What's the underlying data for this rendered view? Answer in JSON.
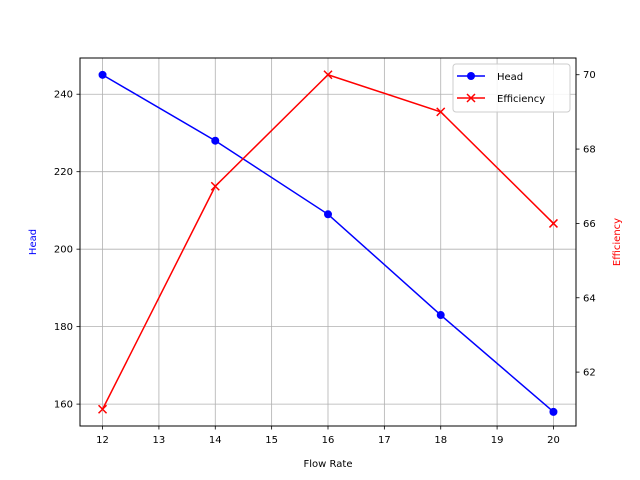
{
  "chart_data": {
    "type": "line",
    "title": "",
    "xlabel": "Flow Rate",
    "ylabel": "Head",
    "y2label": "Efficiency",
    "x": [
      12,
      14,
      16,
      18,
      20
    ],
    "xlim": [
      11.6,
      20.4
    ],
    "xticks": [
      12,
      13,
      14,
      15,
      16,
      17,
      18,
      19,
      20
    ],
    "ylim": [
      154.35,
      249.35
    ],
    "yticks": [
      160,
      180,
      200,
      220,
      240
    ],
    "y2lim": [
      60.55,
      70.45
    ],
    "y2ticks": [
      62,
      64,
      66,
      68,
      70
    ],
    "grid": true,
    "legend_position": "upper right",
    "series": [
      {
        "name": "Head",
        "axis": "left",
        "color": "#0000ff",
        "marker": "circle",
        "values": [
          245,
          228,
          209,
          183,
          158
        ]
      },
      {
        "name": "Efficiency",
        "axis": "right",
        "color": "#ff0000",
        "marker": "x",
        "values": [
          61,
          67,
          70,
          69,
          66
        ]
      }
    ]
  },
  "axes": {
    "x_label": "Flow Rate",
    "y_left_label": "Head",
    "y_right_label": "Efficiency",
    "y_left_color": "#0000ff",
    "y_right_color": "#ff0000"
  },
  "legend": {
    "items": [
      {
        "label": "Head",
        "color": "#0000ff",
        "marker": "circle"
      },
      {
        "label": "Efficiency",
        "color": "#ff0000",
        "marker": "x"
      }
    ]
  }
}
